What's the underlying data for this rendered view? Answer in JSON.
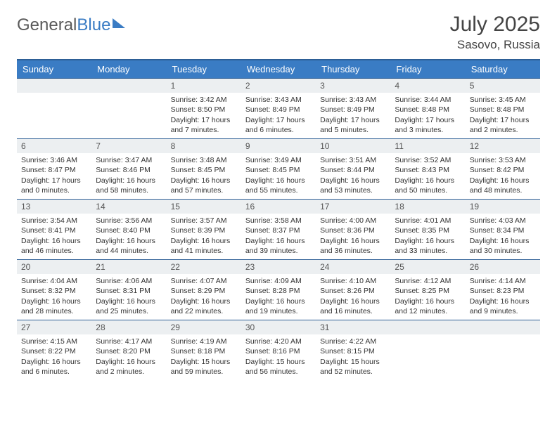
{
  "logo": {
    "text_gray": "General",
    "text_blue": "Blue"
  },
  "header": {
    "month_title": "July 2025",
    "location": "Sasovo, Russia"
  },
  "colors": {
    "header_bg": "#3a7cc4",
    "header_border": "#2d5f96",
    "daynum_bg": "#eceff1",
    "text": "#333333",
    "logo_gray": "#5a5a5a",
    "logo_blue": "#3a7cc4"
  },
  "weekdays": [
    "Sunday",
    "Monday",
    "Tuesday",
    "Wednesday",
    "Thursday",
    "Friday",
    "Saturday"
  ],
  "weeks": [
    [
      {
        "empty": true
      },
      {
        "empty": true
      },
      {
        "n": "1",
        "sr": "Sunrise: 3:42 AM",
        "ss": "Sunset: 8:50 PM",
        "dl": "Daylight: 17 hours and 7 minutes."
      },
      {
        "n": "2",
        "sr": "Sunrise: 3:43 AM",
        "ss": "Sunset: 8:49 PM",
        "dl": "Daylight: 17 hours and 6 minutes."
      },
      {
        "n": "3",
        "sr": "Sunrise: 3:43 AM",
        "ss": "Sunset: 8:49 PM",
        "dl": "Daylight: 17 hours and 5 minutes."
      },
      {
        "n": "4",
        "sr": "Sunrise: 3:44 AM",
        "ss": "Sunset: 8:48 PM",
        "dl": "Daylight: 17 hours and 3 minutes."
      },
      {
        "n": "5",
        "sr": "Sunrise: 3:45 AM",
        "ss": "Sunset: 8:48 PM",
        "dl": "Daylight: 17 hours and 2 minutes."
      }
    ],
    [
      {
        "n": "6",
        "sr": "Sunrise: 3:46 AM",
        "ss": "Sunset: 8:47 PM",
        "dl": "Daylight: 17 hours and 0 minutes."
      },
      {
        "n": "7",
        "sr": "Sunrise: 3:47 AM",
        "ss": "Sunset: 8:46 PM",
        "dl": "Daylight: 16 hours and 58 minutes."
      },
      {
        "n": "8",
        "sr": "Sunrise: 3:48 AM",
        "ss": "Sunset: 8:45 PM",
        "dl": "Daylight: 16 hours and 57 minutes."
      },
      {
        "n": "9",
        "sr": "Sunrise: 3:49 AM",
        "ss": "Sunset: 8:45 PM",
        "dl": "Daylight: 16 hours and 55 minutes."
      },
      {
        "n": "10",
        "sr": "Sunrise: 3:51 AM",
        "ss": "Sunset: 8:44 PM",
        "dl": "Daylight: 16 hours and 53 minutes."
      },
      {
        "n": "11",
        "sr": "Sunrise: 3:52 AM",
        "ss": "Sunset: 8:43 PM",
        "dl": "Daylight: 16 hours and 50 minutes."
      },
      {
        "n": "12",
        "sr": "Sunrise: 3:53 AM",
        "ss": "Sunset: 8:42 PM",
        "dl": "Daylight: 16 hours and 48 minutes."
      }
    ],
    [
      {
        "n": "13",
        "sr": "Sunrise: 3:54 AM",
        "ss": "Sunset: 8:41 PM",
        "dl": "Daylight: 16 hours and 46 minutes."
      },
      {
        "n": "14",
        "sr": "Sunrise: 3:56 AM",
        "ss": "Sunset: 8:40 PM",
        "dl": "Daylight: 16 hours and 44 minutes."
      },
      {
        "n": "15",
        "sr": "Sunrise: 3:57 AM",
        "ss": "Sunset: 8:39 PM",
        "dl": "Daylight: 16 hours and 41 minutes."
      },
      {
        "n": "16",
        "sr": "Sunrise: 3:58 AM",
        "ss": "Sunset: 8:37 PM",
        "dl": "Daylight: 16 hours and 39 minutes."
      },
      {
        "n": "17",
        "sr": "Sunrise: 4:00 AM",
        "ss": "Sunset: 8:36 PM",
        "dl": "Daylight: 16 hours and 36 minutes."
      },
      {
        "n": "18",
        "sr": "Sunrise: 4:01 AM",
        "ss": "Sunset: 8:35 PM",
        "dl": "Daylight: 16 hours and 33 minutes."
      },
      {
        "n": "19",
        "sr": "Sunrise: 4:03 AM",
        "ss": "Sunset: 8:34 PM",
        "dl": "Daylight: 16 hours and 30 minutes."
      }
    ],
    [
      {
        "n": "20",
        "sr": "Sunrise: 4:04 AM",
        "ss": "Sunset: 8:32 PM",
        "dl": "Daylight: 16 hours and 28 minutes."
      },
      {
        "n": "21",
        "sr": "Sunrise: 4:06 AM",
        "ss": "Sunset: 8:31 PM",
        "dl": "Daylight: 16 hours and 25 minutes."
      },
      {
        "n": "22",
        "sr": "Sunrise: 4:07 AM",
        "ss": "Sunset: 8:29 PM",
        "dl": "Daylight: 16 hours and 22 minutes."
      },
      {
        "n": "23",
        "sr": "Sunrise: 4:09 AM",
        "ss": "Sunset: 8:28 PM",
        "dl": "Daylight: 16 hours and 19 minutes."
      },
      {
        "n": "24",
        "sr": "Sunrise: 4:10 AM",
        "ss": "Sunset: 8:26 PM",
        "dl": "Daylight: 16 hours and 16 minutes."
      },
      {
        "n": "25",
        "sr": "Sunrise: 4:12 AM",
        "ss": "Sunset: 8:25 PM",
        "dl": "Daylight: 16 hours and 12 minutes."
      },
      {
        "n": "26",
        "sr": "Sunrise: 4:14 AM",
        "ss": "Sunset: 8:23 PM",
        "dl": "Daylight: 16 hours and 9 minutes."
      }
    ],
    [
      {
        "n": "27",
        "sr": "Sunrise: 4:15 AM",
        "ss": "Sunset: 8:22 PM",
        "dl": "Daylight: 16 hours and 6 minutes."
      },
      {
        "n": "28",
        "sr": "Sunrise: 4:17 AM",
        "ss": "Sunset: 8:20 PM",
        "dl": "Daylight: 16 hours and 2 minutes."
      },
      {
        "n": "29",
        "sr": "Sunrise: 4:19 AM",
        "ss": "Sunset: 8:18 PM",
        "dl": "Daylight: 15 hours and 59 minutes."
      },
      {
        "n": "30",
        "sr": "Sunrise: 4:20 AM",
        "ss": "Sunset: 8:16 PM",
        "dl": "Daylight: 15 hours and 56 minutes."
      },
      {
        "n": "31",
        "sr": "Sunrise: 4:22 AM",
        "ss": "Sunset: 8:15 PM",
        "dl": "Daylight: 15 hours and 52 minutes."
      },
      {
        "empty": true
      },
      {
        "empty": true
      }
    ]
  ]
}
